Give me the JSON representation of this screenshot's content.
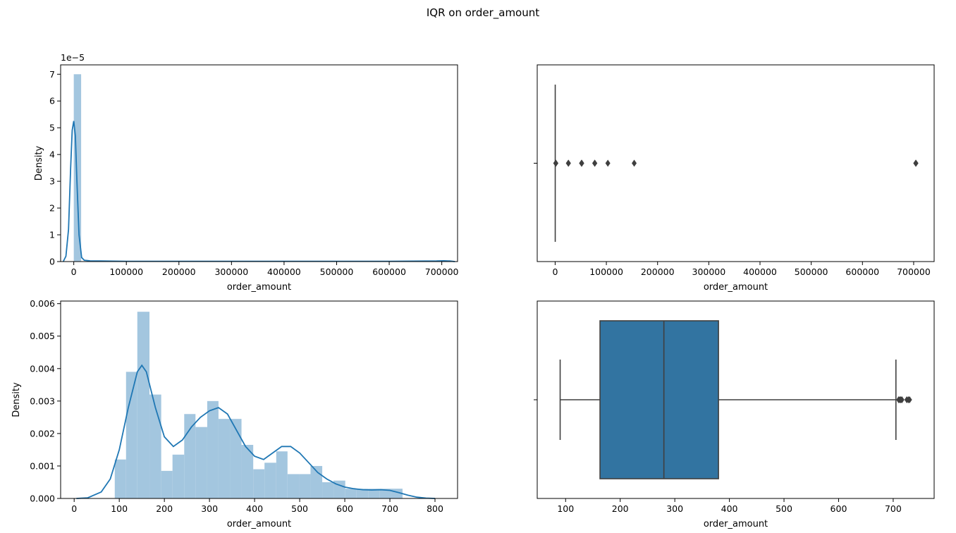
{
  "suptitle": "IQR on order_amount",
  "colors": {
    "hist_fill": "#a3c6df",
    "kde_line": "#1f77b4",
    "box_fill": "#3274a1",
    "box_edge": "#3f3f3f",
    "axis": "#000000"
  },
  "chart_data": [
    {
      "id": "hist-raw",
      "type": "bar",
      "subtype": "histogram-with-kde",
      "xlabel": "order_amount",
      "ylabel": "Density",
      "offset_text": "1e−5",
      "xlim": [
        -25000,
        730000
      ],
      "ylim": [
        0,
        7.35
      ],
      "xticks": [
        0,
        100000,
        200000,
        300000,
        400000,
        500000,
        600000,
        700000
      ],
      "xtick_labels": [
        "0",
        "100000",
        "200000",
        "300000",
        "400000",
        "500000",
        "600000",
        "700000"
      ],
      "yticks": [
        0,
        1,
        2,
        3,
        4,
        5,
        6,
        7
      ],
      "ytick_labels": [
        "0",
        "1",
        "2",
        "3",
        "4",
        "5",
        "6",
        "7"
      ],
      "bins": [
        {
          "x0": 0,
          "x1": 14000,
          "density": 7.0
        },
        {
          "x0": 14000,
          "x1": 28000,
          "density": 0.0
        }
      ],
      "kde": {
        "x": [
          -20000,
          -15000,
          -10000,
          -6000,
          -3000,
          0,
          3000,
          6000,
          10000,
          15000,
          20000,
          30000,
          50000,
          100000,
          300000,
          600000,
          690000,
          704000,
          715000,
          725000
        ],
        "y": [
          0.0,
          0.2,
          1.2,
          3.5,
          4.9,
          5.25,
          4.7,
          3.0,
          1.0,
          0.15,
          0.05,
          0.03,
          0.02,
          0.01,
          0.01,
          0.01,
          0.02,
          0.03,
          0.02,
          0.0
        ]
      }
    },
    {
      "id": "box-raw",
      "type": "box",
      "xlabel": "order_amount",
      "xlim": [
        -35000,
        740000
      ],
      "xticks": [
        0,
        100000,
        200000,
        300000,
        400000,
        500000,
        600000,
        700000
      ],
      "xtick_labels": [
        "0",
        "100000",
        "200000",
        "300000",
        "400000",
        "500000",
        "600000",
        "700000"
      ],
      "q1": 163,
      "median": 284,
      "q3": 390,
      "whisker_low": 90,
      "whisker_high": 730,
      "outliers": [
        1000,
        1500,
        25725,
        26000,
        51450,
        52000,
        77175,
        77500,
        102900,
        154350,
        704000,
        704500
      ]
    },
    {
      "id": "hist-filtered",
      "type": "bar",
      "subtype": "histogram-with-kde",
      "xlabel": "order_amount",
      "ylabel": "Density",
      "xlim": [
        -30,
        850
      ],
      "ylim": [
        0,
        0.00608
      ],
      "xticks": [
        0,
        100,
        200,
        300,
        400,
        500,
        600,
        700,
        800
      ],
      "xtick_labels": [
        "0",
        "100",
        "200",
        "300",
        "400",
        "500",
        "600",
        "700",
        "800"
      ],
      "yticks": [
        0,
        0.001,
        0.002,
        0.003,
        0.004,
        0.005,
        0.006
      ],
      "ytick_labels": [
        "0.000",
        "0.001",
        "0.002",
        "0.003",
        "0.004",
        "0.005",
        "0.006"
      ],
      "bins": [
        {
          "x0": 90,
          "x1": 115,
          "density": 0.0012
        },
        {
          "x0": 115,
          "x1": 140,
          "density": 0.0039
        },
        {
          "x0": 140,
          "x1": 167,
          "density": 0.00575
        },
        {
          "x0": 167,
          "x1": 193,
          "density": 0.0032
        },
        {
          "x0": 193,
          "x1": 218,
          "density": 0.00085
        },
        {
          "x0": 218,
          "x1": 244,
          "density": 0.00135
        },
        {
          "x0": 244,
          "x1": 269,
          "density": 0.0026
        },
        {
          "x0": 269,
          "x1": 295,
          "density": 0.0022
        },
        {
          "x0": 295,
          "x1": 320,
          "density": 0.003
        },
        {
          "x0": 320,
          "x1": 346,
          "density": 0.00245
        },
        {
          "x0": 346,
          "x1": 371,
          "density": 0.00245
        },
        {
          "x0": 371,
          "x1": 397,
          "density": 0.00165
        },
        {
          "x0": 397,
          "x1": 422,
          "density": 0.0009
        },
        {
          "x0": 422,
          "x1": 448,
          "density": 0.0011
        },
        {
          "x0": 448,
          "x1": 473,
          "density": 0.00145
        },
        {
          "x0": 473,
          "x1": 499,
          "density": 0.00075
        },
        {
          "x0": 499,
          "x1": 524,
          "density": 0.00075
        },
        {
          "x0": 524,
          "x1": 550,
          "density": 0.001
        },
        {
          "x0": 550,
          "x1": 575,
          "density": 0.0005
        },
        {
          "x0": 575,
          "x1": 601,
          "density": 0.00055
        },
        {
          "x0": 601,
          "x1": 626,
          "density": 0.0003
        },
        {
          "x0": 626,
          "x1": 652,
          "density": 0.0003
        },
        {
          "x0": 652,
          "x1": 677,
          "density": 0.0003
        },
        {
          "x0": 677,
          "x1": 703,
          "density": 0.0003
        },
        {
          "x0": 703,
          "x1": 728,
          "density": 0.0003
        }
      ],
      "kde": {
        "x": [
          5,
          30,
          60,
          80,
          100,
          120,
          140,
          150,
          160,
          180,
          200,
          220,
          240,
          260,
          280,
          300,
          320,
          340,
          360,
          380,
          400,
          420,
          440,
          460,
          480,
          500,
          520,
          540,
          560,
          580,
          600,
          620,
          640,
          660,
          680,
          700,
          720,
          740,
          760,
          780,
          800
        ],
        "y": [
          0.0,
          2e-05,
          0.0002,
          0.0006,
          0.0015,
          0.0028,
          0.0039,
          0.0041,
          0.0039,
          0.0028,
          0.0019,
          0.0016,
          0.0018,
          0.0022,
          0.0025,
          0.0027,
          0.0028,
          0.0026,
          0.0021,
          0.0016,
          0.0013,
          0.0012,
          0.0014,
          0.0016,
          0.0016,
          0.0014,
          0.0011,
          0.0008,
          0.0006,
          0.00045,
          0.00035,
          0.0003,
          0.00027,
          0.00026,
          0.00027,
          0.00025,
          0.00018,
          0.0001,
          4e-05,
          1e-05,
          0.0
        ]
      }
    },
    {
      "id": "box-filtered",
      "type": "box",
      "xlabel": "order_amount",
      "xlim": [
        48,
        775
      ],
      "xticks": [
        100,
        200,
        300,
        400,
        500,
        600,
        700
      ],
      "xtick_labels": [
        "100",
        "200",
        "300",
        "400",
        "500",
        "600",
        "700"
      ],
      "q1": 163,
      "median": 280,
      "q3": 380,
      "whisker_low": 90,
      "whisker_high": 705,
      "outliers": [
        710,
        712,
        714,
        716,
        725,
        728,
        730
      ]
    }
  ]
}
